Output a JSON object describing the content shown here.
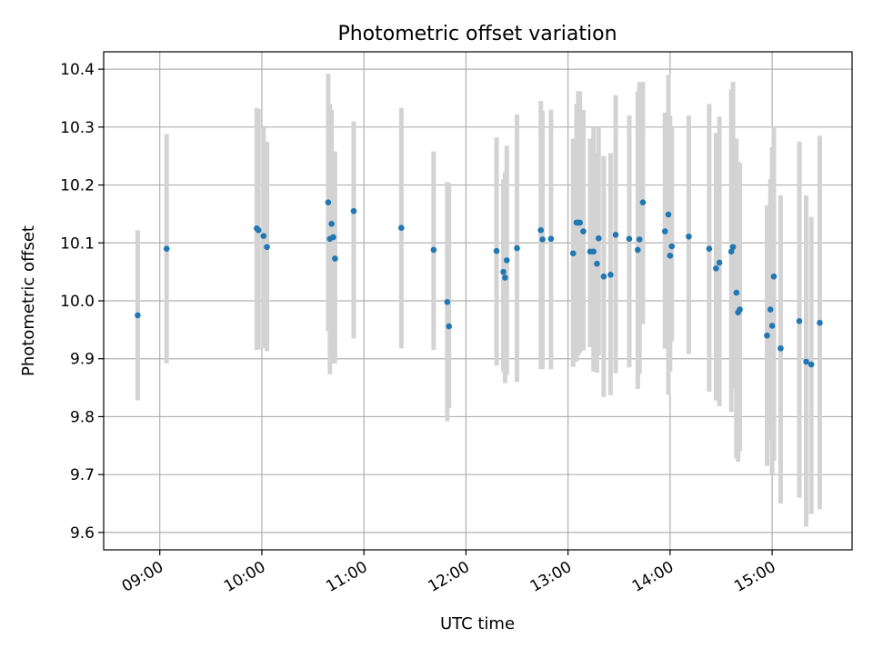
{
  "chart_data": {
    "type": "scatter",
    "title": "Photometric offset variation",
    "xlabel": "UTC time",
    "ylabel": "Photometric offset",
    "x_axis": {
      "scale": "time",
      "range": [
        "08:27",
        "15:47"
      ],
      "ticks": [
        "09:00",
        "10:00",
        "11:00",
        "12:00",
        "13:00",
        "14:00",
        "15:00"
      ],
      "tick_label_rotation_deg": 30
    },
    "y_axis": {
      "range": [
        9.57,
        10.43
      ],
      "ticks": [
        "9.6",
        "9.7",
        "9.8",
        "9.9",
        "10.0",
        "10.1",
        "10.2",
        "10.3",
        "10.4"
      ]
    },
    "grid": true,
    "legend": "none",
    "colors": {
      "marker": "#1f77b4",
      "errorbar": "#d3d3d3",
      "grid": "#b0b0b0"
    },
    "series": [
      {
        "x": [
          "08:47",
          "09:04",
          "09:57",
          "09:58",
          "10:01",
          "10:03",
          "10:39",
          "10:40",
          "10:41",
          "10:42",
          "10:43",
          "10:54",
          "11:22",
          "11:41",
          "11:49",
          "11:50",
          "12:18",
          "12:22",
          "12:23",
          "12:24",
          "12:30",
          "12:44",
          "12:45",
          "12:50",
          "13:03",
          "13:05",
          "13:06",
          "13:07",
          "13:09",
          "13:13",
          "13:15",
          "13:17",
          "13:18",
          "13:21",
          "13:25",
          "13:28",
          "13:36",
          "13:41",
          "13:42",
          "13:44",
          "13:57",
          "13:59",
          "14:00",
          "14:01",
          "14:11",
          "14:23",
          "14:27",
          "14:29",
          "14:36",
          "14:37",
          "14:39",
          "14:40",
          "14:41",
          "14:57",
          "14:59",
          "15:00",
          "15:01",
          "15:05",
          "15:16",
          "15:20",
          "15:23",
          "15:28"
        ],
        "y": [
          9.975,
          10.09,
          10.125,
          10.122,
          10.112,
          10.093,
          10.17,
          10.107,
          10.133,
          10.11,
          10.073,
          10.155,
          10.126,
          10.088,
          9.998,
          9.956,
          10.086,
          10.05,
          10.04,
          10.07,
          10.091,
          10.122,
          10.106,
          10.107,
          10.082,
          10.135,
          10.135,
          10.135,
          10.12,
          10.085,
          10.085,
          10.064,
          10.108,
          10.042,
          10.045,
          10.114,
          10.107,
          10.088,
          10.106,
          10.17,
          10.12,
          10.149,
          10.078,
          10.094,
          10.111,
          10.09,
          10.056,
          10.066,
          10.085,
          10.093,
          10.014,
          9.98,
          9.985,
          9.94,
          9.985,
          9.957,
          10.042,
          9.918,
          9.965,
          9.895,
          9.89,
          9.962
        ],
        "err_low": [
          9.828,
          9.892,
          9.915,
          9.916,
          9.918,
          9.913,
          9.948,
          9.873,
          9.892,
          9.894,
          9.892,
          9.935,
          9.918,
          9.915,
          9.792,
          9.815,
          9.888,
          9.878,
          9.858,
          9.872,
          9.86,
          9.882,
          9.882,
          9.882,
          9.886,
          9.895,
          9.905,
          9.91,
          9.914,
          9.92,
          9.878,
          9.876,
          9.906,
          9.834,
          9.837,
          9.875,
          9.885,
          9.848,
          9.874,
          9.96,
          9.917,
          9.838,
          9.878,
          9.93,
          9.908,
          9.843,
          9.828,
          9.818,
          9.808,
          9.85,
          9.728,
          9.722,
          9.74,
          9.715,
          9.76,
          9.7,
          9.724,
          9.65,
          9.66,
          9.61,
          9.632,
          9.64
        ],
        "err_high": [
          10.122,
          10.288,
          10.333,
          10.331,
          10.3,
          10.275,
          10.392,
          10.34,
          10.33,
          10.258,
          10.258,
          10.31,
          10.333,
          10.258,
          10.205,
          10.203,
          10.282,
          10.21,
          10.222,
          10.268,
          10.322,
          10.345,
          10.328,
          10.33,
          10.28,
          10.34,
          10.362,
          10.362,
          10.33,
          10.28,
          10.3,
          10.255,
          10.3,
          10.25,
          10.255,
          10.355,
          10.32,
          10.362,
          10.378,
          10.378,
          10.325,
          10.39,
          10.32,
          10.3,
          10.32,
          10.34,
          10.29,
          10.318,
          10.365,
          10.378,
          10.28,
          10.24,
          10.238,
          10.165,
          10.21,
          10.265,
          10.302,
          10.182,
          10.275,
          10.182,
          10.145,
          10.285
        ]
      }
    ]
  }
}
